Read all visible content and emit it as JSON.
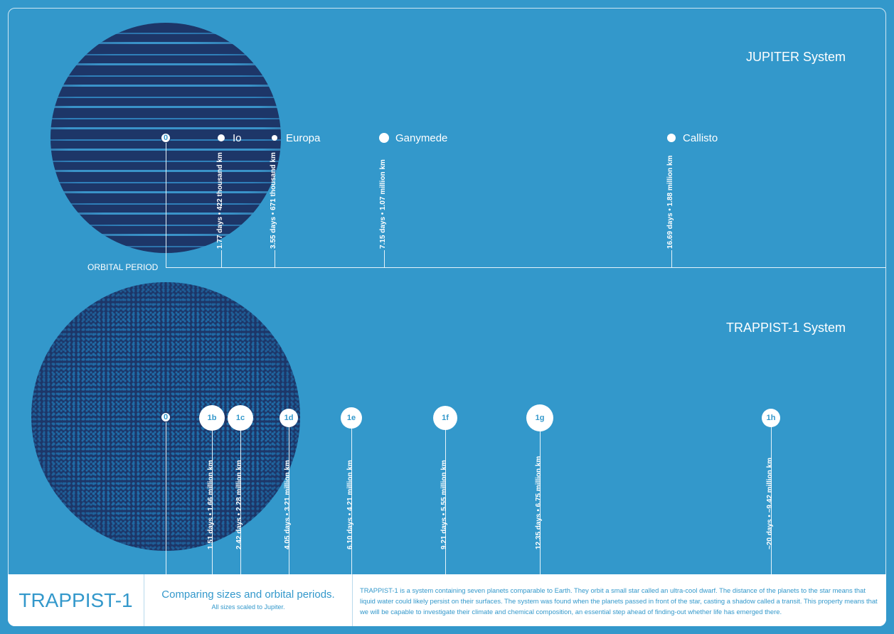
{
  "jupiter": {
    "title": "JUPITER System",
    "zero": "0",
    "axis_label": "ORBITAL PERIOD",
    "moons": [
      {
        "name": "Io",
        "info": "1.77 days • 422 thousand km"
      },
      {
        "name": "Europa",
        "info": "3.55 days • 671 thousand km"
      },
      {
        "name": "Ganymede",
        "info": "7.15 days • 1.07 million km"
      },
      {
        "name": "Callisto",
        "info": "16.69 days • 1.88 million km"
      }
    ]
  },
  "trappist": {
    "title": "TRAPPIST-1 System",
    "zero": "0",
    "planets": [
      {
        "name": "1b",
        "info": "1.51 days • 1.66 million km"
      },
      {
        "name": "1c",
        "info": "2.42 days • 2.28 million km"
      },
      {
        "name": "1d",
        "info": "4.05 days • 3.21 million km"
      },
      {
        "name": "1e",
        "info": "6.10 days • 4.21 million km"
      },
      {
        "name": "1f",
        "info": "9.21 days • 5.55 million km"
      },
      {
        "name": "1g",
        "info": "12.35 days • 6.75 million km"
      },
      {
        "name": "1h",
        "info": "~20 days • ~9.42 million km"
      }
    ]
  },
  "footer": {
    "title": "TRAPPIST-1",
    "subtitle": "Comparing sizes and orbital periods.",
    "note": "All sizes scaled to Jupiter.",
    "description": "TRAPPIST-1 is a system containing seven planets comparable to Earth. They orbit a small star called an ultra-cool dwarf. The distance of the planets to the star means that liquid water could likely persist on their surfaces. The system was found when the planets passed in front of the star, casting a shadow called a transit. This property means that we will be capable to investigate their climate and chemical composition, an essential step ahead of finding-out whether life has emerged there."
  },
  "colors": {
    "background": "#3398cb",
    "planet": "#1d3668",
    "footer": "#ffffff"
  }
}
